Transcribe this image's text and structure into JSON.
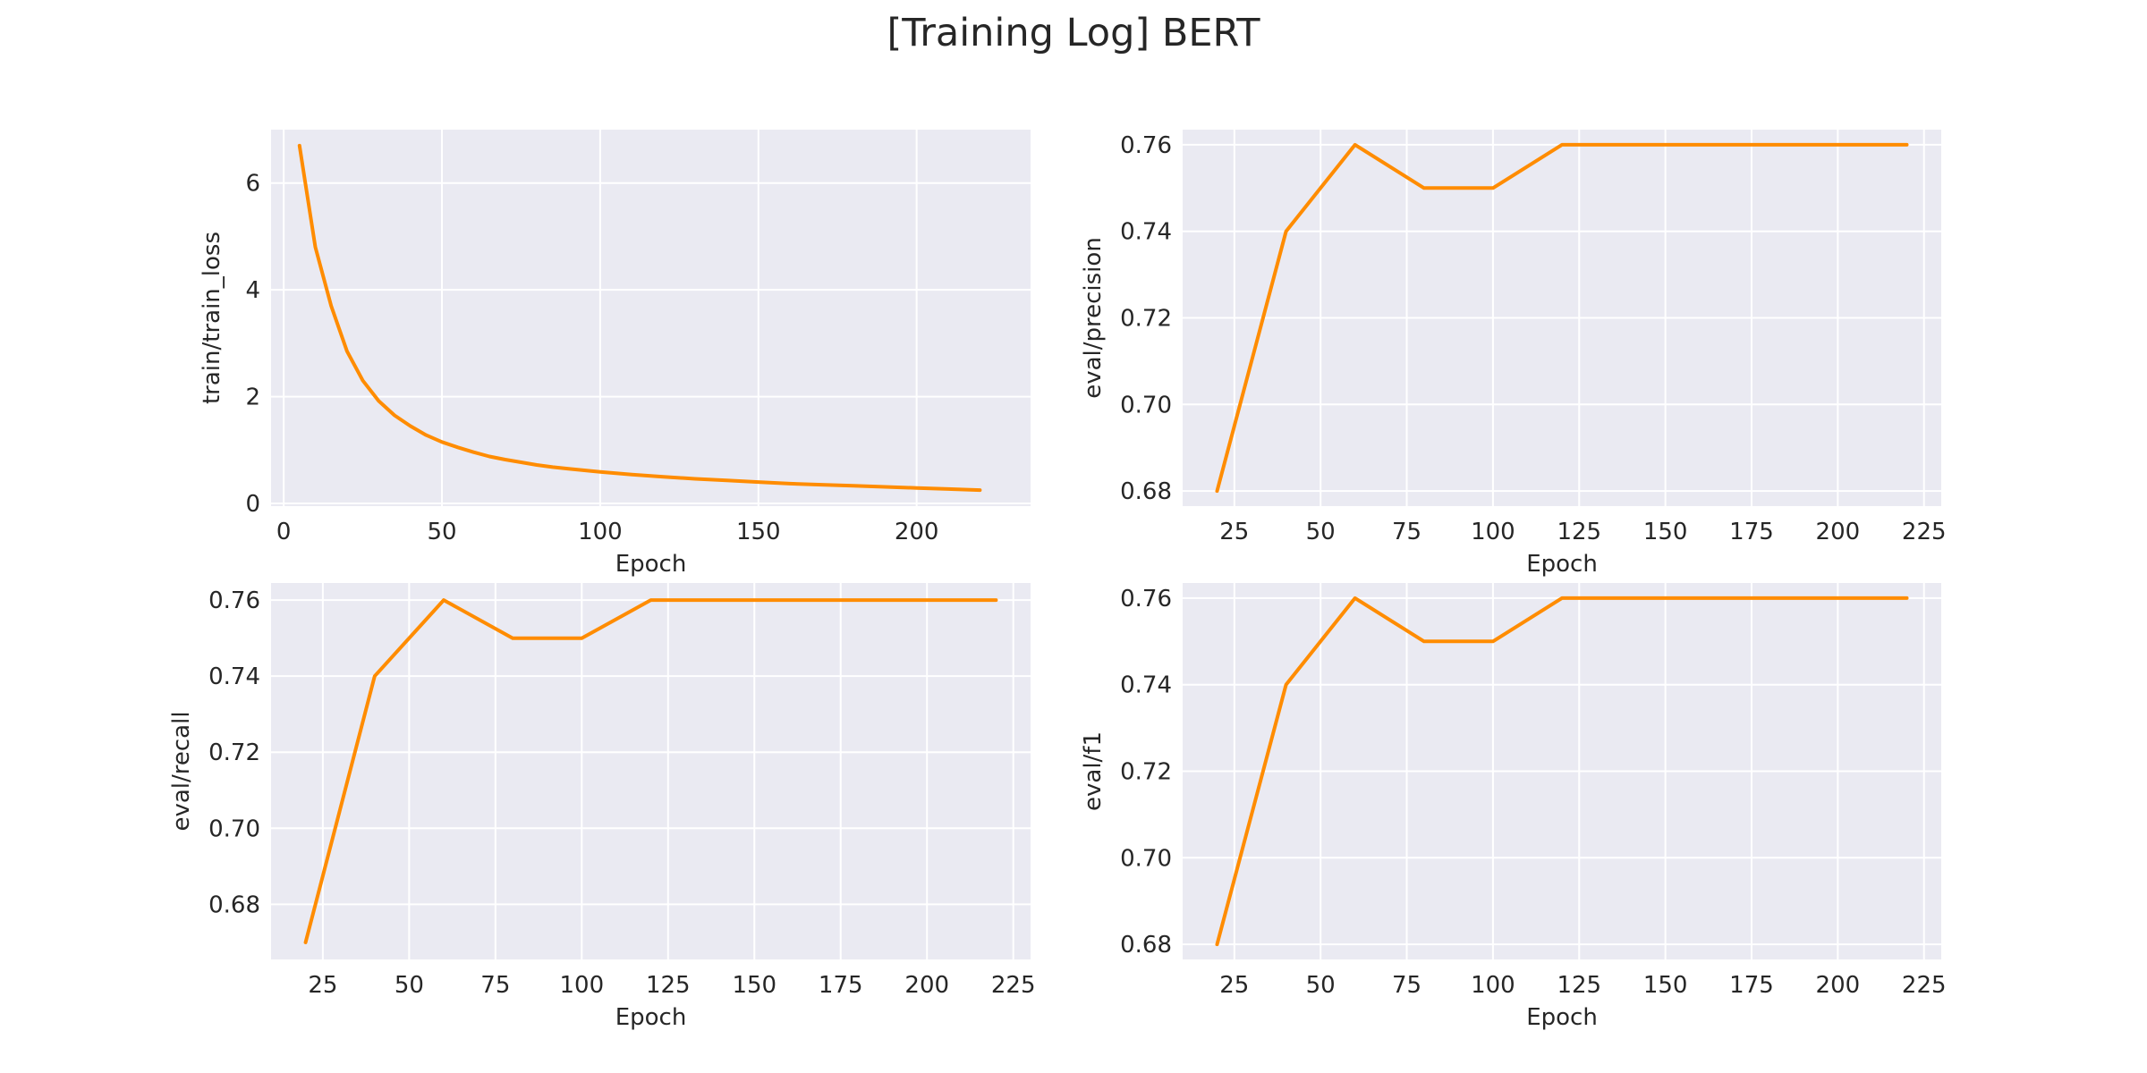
{
  "figure": {
    "title": "[Training Log] BERT"
  },
  "style": {
    "line_color": "#ff8c00",
    "panel_bg": "#eaeaf2",
    "grid_color": "#ffffff",
    "text_color": "#262626"
  },
  "chart_data": [
    {
      "type": "line",
      "xlabel": "Epoch",
      "ylabel": "train/train_loss",
      "grid": true,
      "xlim": [
        -4,
        236
      ],
      "ylim": [
        -0.05,
        7.0
      ],
      "xticks": [
        0,
        50,
        100,
        150,
        200
      ],
      "yticks": [
        0,
        2,
        4,
        6
      ],
      "ytick_labels": [
        "0",
        "2",
        "4",
        "6"
      ],
      "series": [
        {
          "x": [
            5,
            10,
            15,
            20,
            25,
            30,
            35,
            40,
            45,
            50,
            55,
            60,
            65,
            70,
            75,
            80,
            85,
            90,
            95,
            100,
            110,
            120,
            130,
            140,
            150,
            160,
            170,
            180,
            190,
            200,
            210,
            220
          ],
          "y": [
            6.7,
            4.8,
            3.7,
            2.85,
            2.3,
            1.92,
            1.65,
            1.45,
            1.28,
            1.15,
            1.05,
            0.96,
            0.88,
            0.82,
            0.77,
            0.72,
            0.68,
            0.65,
            0.62,
            0.59,
            0.54,
            0.5,
            0.46,
            0.43,
            0.4,
            0.37,
            0.35,
            0.33,
            0.31,
            0.29,
            0.27,
            0.25
          ]
        }
      ]
    },
    {
      "type": "line",
      "xlabel": "Epoch",
      "ylabel": "eval/precision",
      "grid": true,
      "xlim": [
        10,
        230
      ],
      "ylim": [
        0.6765,
        0.7635
      ],
      "xticks": [
        25,
        50,
        75,
        100,
        125,
        150,
        175,
        200,
        225
      ],
      "yticks": [
        0.68,
        0.7,
        0.72,
        0.74,
        0.76
      ],
      "ytick_labels": [
        "0.68",
        "0.70",
        "0.72",
        "0.74",
        "0.76"
      ],
      "series": [
        {
          "x": [
            20,
            40,
            60,
            80,
            100,
            120,
            140,
            160,
            180,
            200,
            220
          ],
          "y": [
            0.68,
            0.74,
            0.76,
            0.75,
            0.75,
            0.76,
            0.76,
            0.76,
            0.76,
            0.76,
            0.76
          ]
        }
      ]
    },
    {
      "type": "line",
      "xlabel": "Epoch",
      "ylabel": "eval/recall",
      "grid": true,
      "xlim": [
        10,
        230
      ],
      "ylim": [
        0.6655,
        0.7645
      ],
      "xticks": [
        25,
        50,
        75,
        100,
        125,
        150,
        175,
        200,
        225
      ],
      "yticks": [
        0.68,
        0.7,
        0.72,
        0.74,
        0.76
      ],
      "ytick_labels": [
        "0.68",
        "0.70",
        "0.72",
        "0.74",
        "0.76"
      ],
      "series": [
        {
          "x": [
            20,
            40,
            60,
            80,
            100,
            120,
            140,
            160,
            180,
            200,
            220
          ],
          "y": [
            0.67,
            0.74,
            0.76,
            0.75,
            0.75,
            0.76,
            0.76,
            0.76,
            0.76,
            0.76,
            0.76
          ]
        }
      ]
    },
    {
      "type": "line",
      "xlabel": "Epoch",
      "ylabel": "eval/f1",
      "grid": true,
      "xlim": [
        10,
        230
      ],
      "ylim": [
        0.6765,
        0.7635
      ],
      "xticks": [
        25,
        50,
        75,
        100,
        125,
        150,
        175,
        200,
        225
      ],
      "yticks": [
        0.68,
        0.7,
        0.72,
        0.74,
        0.76
      ],
      "ytick_labels": [
        "0.68",
        "0.70",
        "0.72",
        "0.74",
        "0.76"
      ],
      "series": [
        {
          "x": [
            20,
            40,
            60,
            80,
            100,
            120,
            140,
            160,
            180,
            200,
            220
          ],
          "y": [
            0.68,
            0.74,
            0.76,
            0.75,
            0.75,
            0.76,
            0.76,
            0.76,
            0.76,
            0.76,
            0.76
          ]
        }
      ]
    }
  ]
}
